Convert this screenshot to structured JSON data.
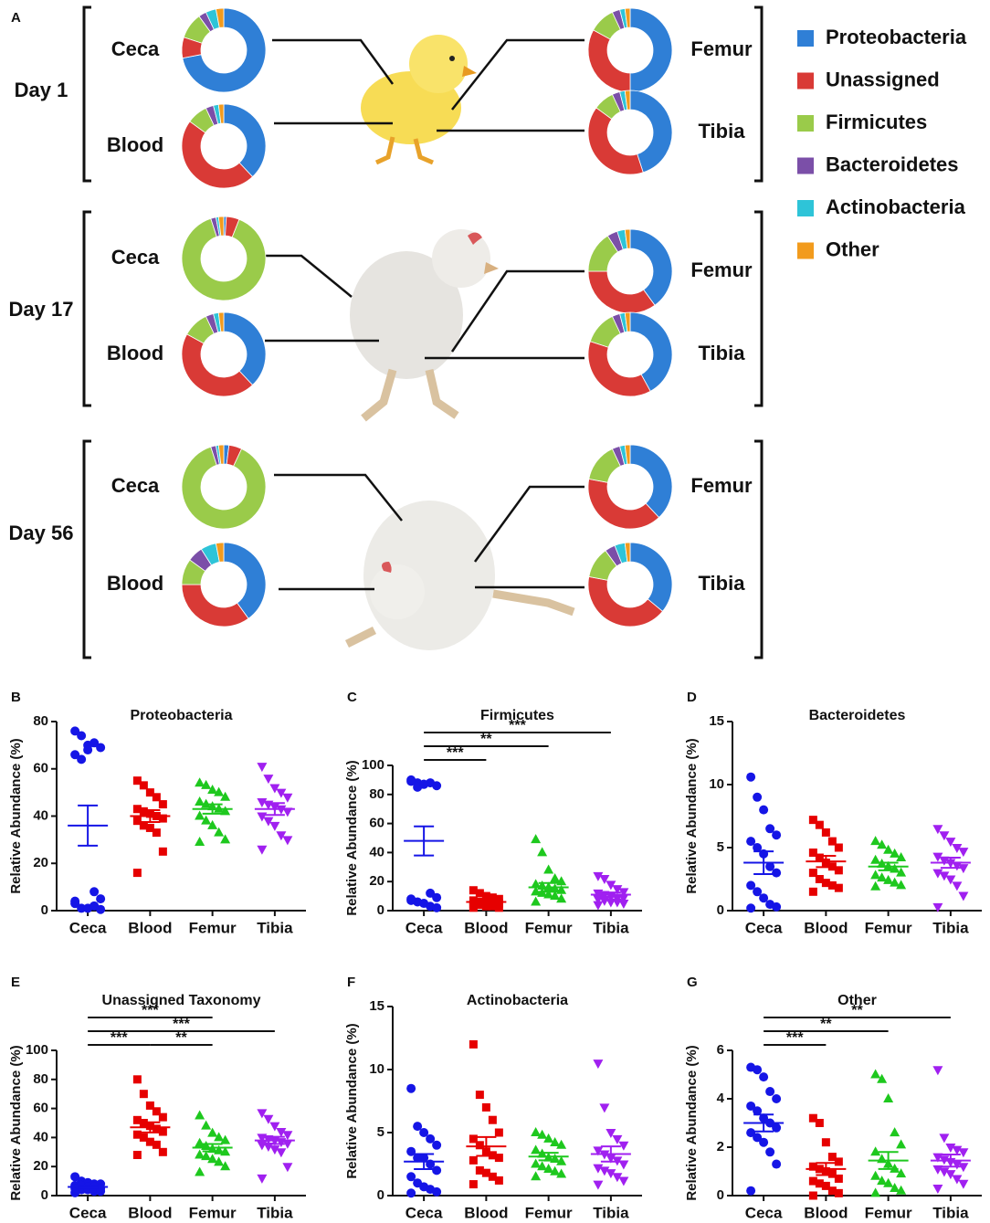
{
  "chart_data": [
    {
      "type": "donut-panel",
      "panel": "A",
      "categories": [
        "Proteobacteria",
        "Unassigned",
        "Firmicutes",
        "Bacteroidetes",
        "Actinobacteria",
        "Other"
      ],
      "colors": [
        "#2f7fd6",
        "#d93a36",
        "#9acb4a",
        "#7b4fa8",
        "#2ec4d8",
        "#f29b1d"
      ],
      "days": [
        {
          "label": "Day 1",
          "samples": [
            {
              "name": "Ceca",
              "values": [
                72,
                8,
                10,
                3,
                4,
                3
              ]
            },
            {
              "name": "Blood",
              "values": [
                38,
                47,
                8,
                3,
                2,
                2
              ]
            },
            {
              "name": "Femur",
              "values": [
                50,
                33,
                10,
                3,
                2,
                2
              ]
            },
            {
              "name": "Tibia",
              "values": [
                45,
                40,
                8,
                3,
                2,
                2
              ]
            }
          ]
        },
        {
          "label": "Day 17",
          "samples": [
            {
              "name": "Ceca",
              "values": [
                1,
                5,
                89,
                2,
                1,
                2
              ]
            },
            {
              "name": "Blood",
              "values": [
                38,
                45,
                10,
                3,
                2,
                2
              ]
            },
            {
              "name": "Femur",
              "values": [
                40,
                35,
                16,
                4,
                3,
                2
              ]
            },
            {
              "name": "Tibia",
              "values": [
                42,
                38,
                13,
                3,
                2,
                2
              ]
            }
          ]
        },
        {
          "label": "Day 56",
          "samples": [
            {
              "name": "Ceca",
              "values": [
                2,
                5,
                88,
                2,
                1,
                2
              ]
            },
            {
              "name": "Blood",
              "values": [
                40,
                35,
                10,
                6,
                6,
                3
              ]
            },
            {
              "name": "Femur",
              "values": [
                38,
                40,
                15,
                3,
                2,
                2
              ]
            },
            {
              "name": "Tibia",
              "values": [
                36,
                42,
                12,
                4,
                4,
                2
              ]
            }
          ]
        }
      ]
    },
    {
      "type": "dot-plot",
      "panel": "B",
      "title": "Proteobacteria",
      "y_label": "Relative Abundance (%)",
      "categories": [
        "Ceca",
        "Blood",
        "Femur",
        "Tibia"
      ],
      "ylim": [
        0,
        80
      ],
      "yticks": [
        0,
        20,
        40,
        60,
        80
      ],
      "groups": [
        {
          "color": "#1515e6",
          "marker": "circle",
          "values": [
            76,
            74,
            70,
            71,
            69,
            66,
            64,
            68,
            8,
            5,
            3,
            1,
            1,
            2,
            0.5,
            4
          ],
          "mean": 36,
          "sem": 8.5
        },
        {
          "color": "#e60000",
          "marker": "square",
          "values": [
            55,
            53,
            50,
            48,
            45,
            43,
            42,
            41,
            40,
            39,
            38,
            36,
            35,
            33,
            25,
            16
          ],
          "mean": 40,
          "sem": 2.5
        },
        {
          "color": "#1ec81e",
          "marker": "triangle-up",
          "values": [
            54,
            53,
            51,
            50,
            48,
            46,
            45,
            44,
            43,
            42,
            40,
            38,
            36,
            33,
            30,
            29
          ],
          "mean": 43,
          "sem": 2
        },
        {
          "color": "#a020f0",
          "marker": "triangle-down",
          "values": [
            61,
            56,
            52,
            50,
            48,
            46,
            45,
            44,
            43,
            42,
            40,
            38,
            36,
            32,
            30,
            26
          ],
          "mean": 43,
          "sem": 2.5
        }
      ],
      "comparisons": []
    },
    {
      "type": "dot-plot",
      "panel": "C",
      "title": "Firmicutes",
      "y_label": "Relative Abundance (%)",
      "categories": [
        "Ceca",
        "Blood",
        "Femur",
        "Tibia"
      ],
      "ylim": [
        0,
        100
      ],
      "yticks": [
        0,
        20,
        40,
        60,
        80,
        100
      ],
      "groups": [
        {
          "color": "#1515e6",
          "marker": "circle",
          "values": [
            90,
            88,
            87,
            88,
            86,
            89,
            85,
            87,
            12,
            9,
            7,
            6,
            5,
            3,
            2,
            8
          ],
          "mean": 48,
          "sem": 10
        },
        {
          "color": "#e60000",
          "marker": "square",
          "values": [
            14,
            12,
            10,
            9,
            8,
            7,
            6,
            6,
            5,
            5,
            4,
            4,
            3,
            3,
            2,
            2
          ],
          "mean": 6,
          "sem": 1
        },
        {
          "color": "#1ec81e",
          "marker": "triangle-up",
          "values": [
            49,
            40,
            28,
            22,
            20,
            18,
            17,
            16,
            15,
            14,
            13,
            12,
            11,
            10,
            8,
            6
          ],
          "mean": 16,
          "sem": 3
        },
        {
          "color": "#a020f0",
          "marker": "triangle-down",
          "values": [
            24,
            22,
            18,
            15,
            13,
            12,
            11,
            10,
            9,
            9,
            8,
            7,
            6,
            6,
            5,
            4
          ],
          "mean": 11,
          "sem": 1.5
        }
      ],
      "comparisons": [
        {
          "between": [
            "Ceca",
            "Blood"
          ],
          "label": "***"
        },
        {
          "between": [
            "Ceca",
            "Femur"
          ],
          "label": "**"
        },
        {
          "between": [
            "Ceca",
            "Tibia"
          ],
          "label": "***"
        }
      ]
    },
    {
      "type": "dot-plot",
      "panel": "D",
      "title": "Bacteroidetes",
      "y_label": "Relative Abundance (%)",
      "categories": [
        "Ceca",
        "Blood",
        "Femur",
        "Tibia"
      ],
      "ylim": [
        0,
        15
      ],
      "yticks": [
        0,
        5,
        10,
        15
      ],
      "groups": [
        {
          "color": "#1515e6",
          "marker": "circle",
          "values": [
            10.6,
            9,
            8,
            6.5,
            6,
            5.5,
            5,
            4.5,
            3.5,
            3,
            2,
            1.5,
            1,
            0.5,
            0.3,
            0.2
          ],
          "mean": 3.8,
          "sem": 0.9
        },
        {
          "color": "#e60000",
          "marker": "square",
          "values": [
            7.2,
            6.8,
            6.2,
            5.5,
            5,
            4.6,
            4.2,
            3.8,
            3.5,
            3.2,
            3,
            2.5,
            2.2,
            2,
            1.8,
            1.5
          ],
          "mean": 3.9,
          "sem": 0.45
        },
        {
          "color": "#1ec81e",
          "marker": "triangle-up",
          "values": [
            5.5,
            5.2,
            4.8,
            4.5,
            4.2,
            4,
            3.7,
            3.5,
            3.3,
            3,
            2.8,
            2.6,
            2.4,
            2.2,
            2,
            1.9
          ],
          "mean": 3.5,
          "sem": 0.3
        },
        {
          "color": "#a020f0",
          "marker": "triangle-down",
          "values": [
            6.5,
            6,
            5.5,
            5,
            4.7,
            4.3,
            4,
            3.8,
            3.6,
            3.4,
            3,
            2.8,
            2.5,
            2,
            1.2,
            0.3
          ],
          "mean": 3.8,
          "sem": 0.4
        }
      ],
      "comparisons": []
    },
    {
      "type": "dot-plot",
      "panel": "E",
      "title": "Unassigned Taxonomy",
      "y_label": "Relative Abundance (%)",
      "categories": [
        "Ceca",
        "Blood",
        "Femur",
        "Tibia"
      ],
      "ylim": [
        0,
        100
      ],
      "yticks": [
        0,
        20,
        40,
        60,
        80,
        100
      ],
      "groups": [
        {
          "color": "#1515e6",
          "marker": "circle",
          "values": [
            13,
            10,
            9,
            8,
            8,
            7,
            7,
            6,
            6,
            5,
            5,
            4,
            4,
            3,
            3,
            2
          ],
          "mean": 6,
          "sem": 0.8
        },
        {
          "color": "#e60000",
          "marker": "square",
          "values": [
            80,
            70,
            62,
            58,
            54,
            52,
            50,
            48,
            46,
            44,
            42,
            40,
            37,
            35,
            30,
            28
          ],
          "mean": 47,
          "sem": 3.5
        },
        {
          "color": "#1ec81e",
          "marker": "triangle-up",
          "values": [
            55,
            48,
            43,
            40,
            38,
            36,
            34,
            32,
            31,
            30,
            28,
            27,
            25,
            23,
            20,
            16
          ],
          "mean": 33,
          "sem": 2.5
        },
        {
          "color": "#a020f0",
          "marker": "triangle-down",
          "values": [
            57,
            53,
            48,
            44,
            42,
            40,
            39,
            38,
            37,
            36,
            35,
            34,
            32,
            30,
            20,
            12
          ],
          "mean": 38,
          "sem": 2.5
        }
      ],
      "comparisons": [
        {
          "between": [
            "Ceca",
            "Blood"
          ],
          "label": "***"
        },
        {
          "between": [
            "Blood",
            "Femur"
          ],
          "label": "**"
        },
        {
          "between": [
            "Ceca",
            "Tibia"
          ],
          "label": "***"
        },
        {
          "between": [
            "Ceca",
            "Femur"
          ],
          "label": "***"
        }
      ]
    },
    {
      "type": "dot-plot",
      "panel": "F",
      "title": "Actinobacteria",
      "y_label": "Relative Abundance (%)",
      "categories": [
        "Ceca",
        "Blood",
        "Femur",
        "Tibia"
      ],
      "ylim": [
        0,
        15
      ],
      "yticks": [
        0,
        5,
        10,
        15
      ],
      "groups": [
        {
          "color": "#1515e6",
          "marker": "circle",
          "values": [
            8.5,
            5.5,
            5,
            4.5,
            4,
            3.5,
            3,
            3,
            2.5,
            2,
            1.5,
            1,
            0.7,
            0.5,
            0.3,
            0.2
          ],
          "mean": 2.7,
          "sem": 0.6
        },
        {
          "color": "#e60000",
          "marker": "square",
          "values": [
            12,
            8,
            7,
            6,
            5,
            4.5,
            4,
            3.5,
            3.2,
            3,
            2.8,
            2,
            1.8,
            1.5,
            1.2,
            0.9
          ],
          "mean": 3.9,
          "sem": 0.75
        },
        {
          "color": "#1ec81e",
          "marker": "triangle-up",
          "values": [
            5,
            4.8,
            4.5,
            4.2,
            4,
            3.6,
            3.3,
            3,
            2.9,
            2.7,
            2.5,
            2.3,
            2.1,
            1.9,
            1.7,
            1.5
          ],
          "mean": 3.1,
          "sem": 0.3
        },
        {
          "color": "#a020f0",
          "marker": "triangle-down",
          "values": [
            10.5,
            7,
            5,
            4.5,
            4,
            3.6,
            3.3,
            3,
            2.8,
            2.5,
            2.2,
            2,
            1.8,
            1.5,
            1.2,
            0.9
          ],
          "mean": 3.3,
          "sem": 0.6
        }
      ],
      "comparisons": []
    },
    {
      "type": "dot-plot",
      "panel": "G",
      "title": "Other",
      "y_label": "Relative Abundance (%)",
      "categories": [
        "Ceca",
        "Blood",
        "Femur",
        "Tibia"
      ],
      "ylim": [
        0,
        6
      ],
      "yticks": [
        0,
        2,
        4,
        6
      ],
      "groups": [
        {
          "color": "#1515e6",
          "marker": "circle",
          "values": [
            5.3,
            5.2,
            4.9,
            4.3,
            4,
            3.7,
            3.5,
            3.2,
            3,
            2.8,
            2.6,
            2.4,
            2.2,
            1.8,
            1.3,
            0.2
          ],
          "mean": 3,
          "sem": 0.35
        },
        {
          "color": "#e60000",
          "marker": "square",
          "values": [
            3.2,
            3,
            2.2,
            1.6,
            1.4,
            1.2,
            1.1,
            1,
            0.9,
            0.7,
            0.6,
            0.5,
            0.4,
            0.2,
            0.1,
            0
          ],
          "mean": 1.1,
          "sem": 0.25
        },
        {
          "color": "#1ec81e",
          "marker": "triangle-up",
          "values": [
            5,
            4.8,
            4,
            2.6,
            2.1,
            1.8,
            1.5,
            1.3,
            1.1,
            0.9,
            0.8,
            0.6,
            0.5,
            0.3,
            0.2,
            0.1
          ],
          "mean": 1.45,
          "sem": 0.35
        },
        {
          "color": "#a020f0",
          "marker": "triangle-down",
          "values": [
            5.2,
            2.4,
            2,
            1.9,
            1.8,
            1.6,
            1.5,
            1.4,
            1.3,
            1.2,
            1.1,
            1,
            0.9,
            0.7,
            0.5,
            0.3
          ],
          "mean": 1.45,
          "sem": 0.25
        }
      ],
      "comparisons": [
        {
          "between": [
            "Ceca",
            "Blood"
          ],
          "label": "***"
        },
        {
          "between": [
            "Ceca",
            "Femur"
          ],
          "label": "**"
        },
        {
          "between": [
            "Ceca",
            "Tibia"
          ],
          "label": "**"
        }
      ]
    }
  ]
}
